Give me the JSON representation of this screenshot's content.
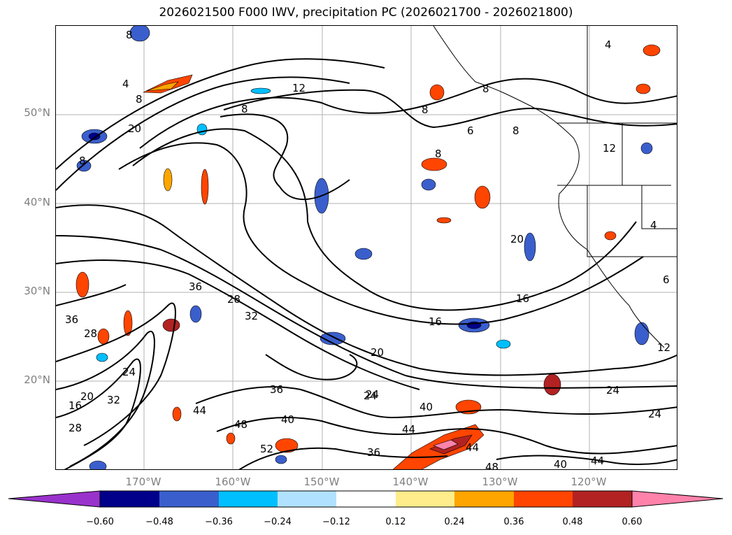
{
  "title": "2026021500 F000 IWV, precipitation PC (2026021700 - 2026021800)",
  "axes": {
    "lat_labels": [
      "50°N",
      "40°N",
      "30°N",
      "20°N"
    ],
    "lon_labels": [
      "170°W",
      "160°W",
      "150°W",
      "140°W",
      "130°W",
      "120°W"
    ]
  },
  "colorbar": {
    "ticks": [
      "−0.60",
      "−0.48",
      "−0.36",
      "−0.24",
      "−0.12",
      "0.12",
      "0.24",
      "0.36",
      "0.48",
      "0.60"
    ],
    "colors": [
      "#9932cc",
      "#00008b",
      "#3a5fcd",
      "#00bfff",
      "#b0e2ff",
      "#ffffff",
      "#ffec8b",
      "#ffa500",
      "#ff4500",
      "#b22222",
      "#ff82ab"
    ]
  },
  "contour_labels": [
    "8",
    "4",
    "8",
    "20",
    "12",
    "8",
    "8",
    "8",
    "8",
    "12",
    "4",
    "8",
    "6",
    "8",
    "20",
    "36",
    "28",
    "32",
    "16",
    "20",
    "24",
    "16",
    "12",
    "36",
    "28",
    "24",
    "16",
    "20",
    "32",
    "28",
    "36",
    "40",
    "44",
    "48",
    "52",
    "36",
    "44",
    "40",
    "24",
    "24",
    "44",
    "48",
    "40",
    "44",
    "24",
    "4",
    "6"
  ]
}
